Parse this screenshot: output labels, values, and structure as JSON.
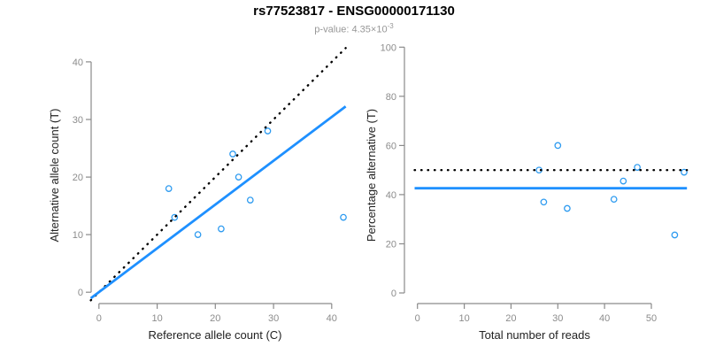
{
  "header": {
    "title": "rs77523817 - ENSG00000171130",
    "subtitle_prefix": "p-value: 4.35×10",
    "subtitle_exponent": "-3"
  },
  "colors": {
    "fit_line_blue": "#1E90FF",
    "point_blue": "#2E9BF0",
    "dotted_line_black": "#000000",
    "axis_gray": "#8A8A8A",
    "tick_label_gray": "#8C8C8C",
    "axis_title_color": "#222222",
    "title_color": "#000000",
    "subtitle_gray": "#979797",
    "background": "#FFFFFF"
  },
  "chart_data": [
    {
      "type": "scatter",
      "name": "allele-counts-scatter",
      "xlabel": "Reference allele count (C)",
      "ylabel": "Alternative allele count (T)",
      "xlim": [
        -1.4,
        42.4
      ],
      "ylim": [
        -2.0,
        42.8
      ],
      "xticks": [
        0,
        10,
        20,
        30,
        40
      ],
      "yticks": [
        0,
        10,
        20,
        30,
        40
      ],
      "grid": false,
      "legend": false,
      "points": [
        [
          12,
          18
        ],
        [
          13,
          13
        ],
        [
          17,
          10
        ],
        [
          21,
          11
        ],
        [
          23,
          24
        ],
        [
          24,
          20
        ],
        [
          26,
          16
        ],
        [
          29,
          28
        ],
        [
          42,
          13
        ]
      ],
      "lines": [
        {
          "name": "identity-line",
          "style": "dotted",
          "color": "#000000",
          "from": [
            -1.4,
            -1.4
          ],
          "to": [
            42.4,
            42.4
          ]
        },
        {
          "name": "fit-line",
          "style": "solid",
          "color": "#1E90FF",
          "from": [
            -1.4,
            -1.05
          ],
          "to": [
            42.4,
            32.25
          ]
        }
      ]
    },
    {
      "type": "scatter",
      "name": "percentage-scatter",
      "xlabel": "Total number of reads",
      "ylabel": "Percentage alternative (T)",
      "xlim": [
        -2.8,
        59.3
      ],
      "ylim": [
        -4.3,
        100.5
      ],
      "xticks": [
        0,
        10,
        20,
        30,
        40,
        50
      ],
      "yticks": [
        0,
        20,
        40,
        60,
        80,
        100
      ],
      "grid": false,
      "legend": false,
      "points": [
        [
          26,
          50
        ],
        [
          27,
          37
        ],
        [
          30,
          60
        ],
        [
          32,
          34.4
        ],
        [
          42,
          38.1
        ],
        [
          44,
          45.5
        ],
        [
          47,
          51.1
        ],
        [
          55,
          23.6
        ],
        [
          57,
          49.1
        ]
      ],
      "lines": [
        {
          "name": "expected-50pct-line",
          "style": "dotted",
          "color": "#000000",
          "from": [
            -0.6,
            50
          ],
          "to": [
            57.6,
            50
          ]
        },
        {
          "name": "fit-line",
          "style": "solid",
          "color": "#1E90FF",
          "from": [
            -0.6,
            42.6
          ],
          "to": [
            57.6,
            42.6
          ]
        }
      ]
    }
  ]
}
